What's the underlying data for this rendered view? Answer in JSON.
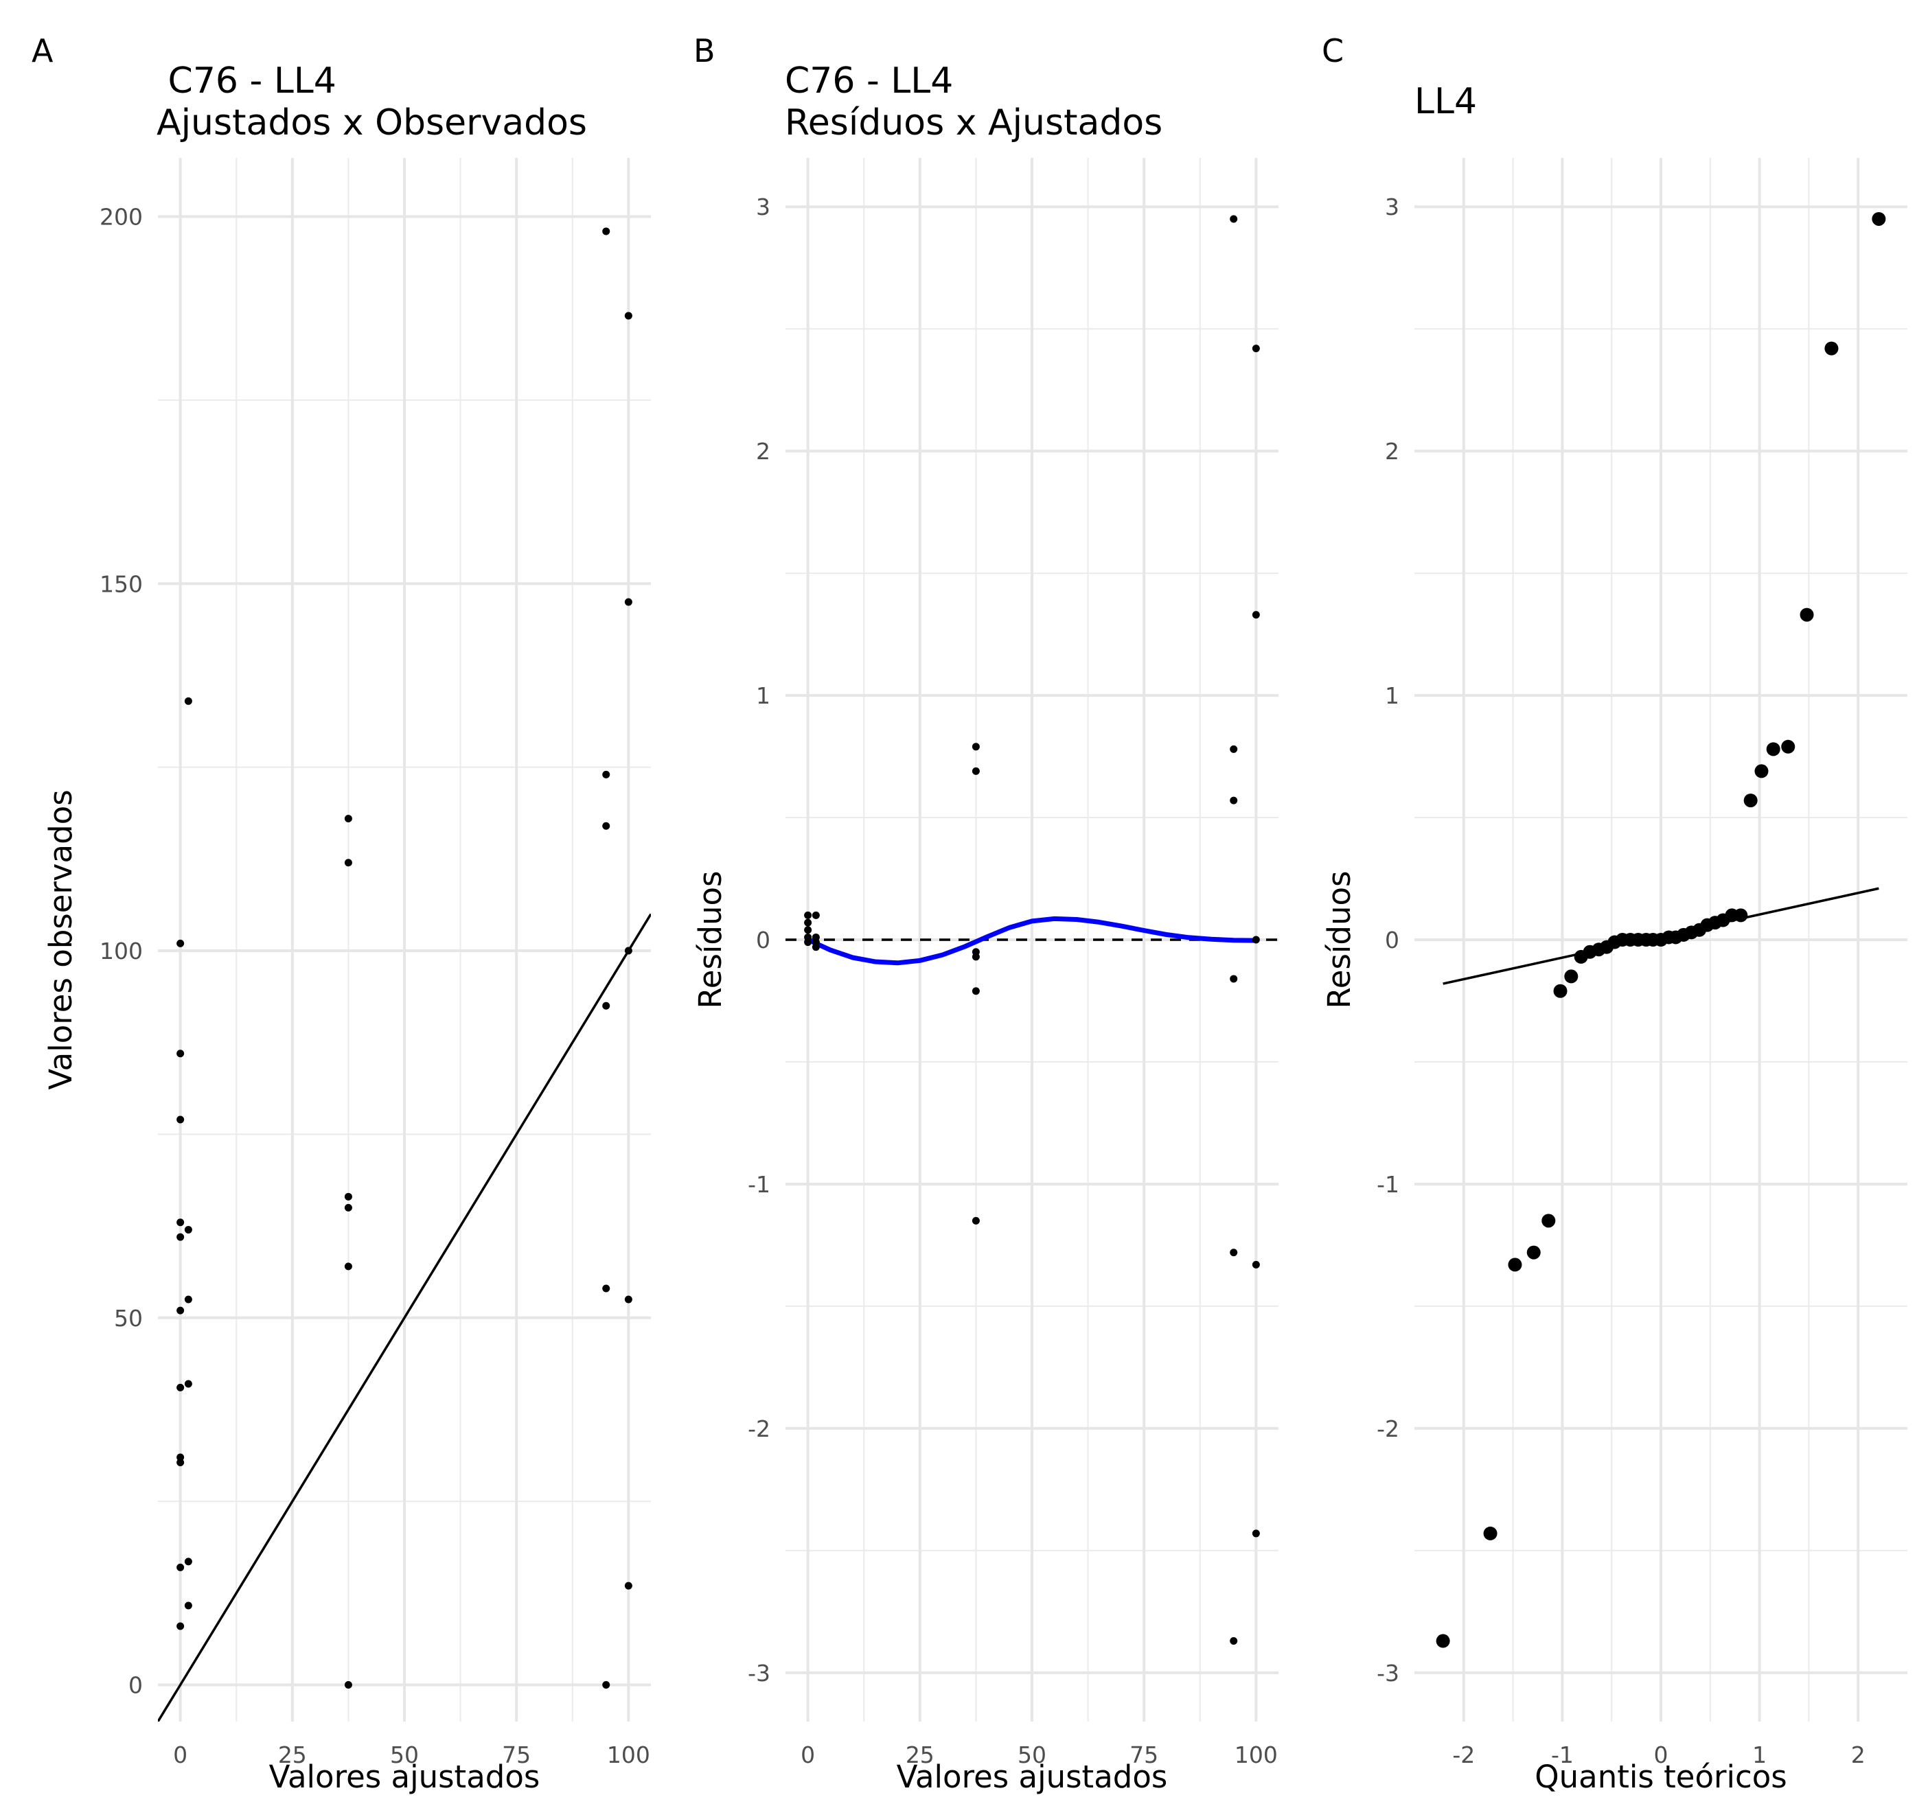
{
  "chart_data": [
    {
      "panel_tag": "A",
      "type": "scatter",
      "title_lines": [
        " C76 - LL4",
        "Ajustados x Observados"
      ],
      "xlabel": "Valores ajustados",
      "ylabel": "Valores observados",
      "xlim": [
        -5,
        105
      ],
      "ylim": [
        -5,
        208
      ],
      "xticks": [
        0,
        25,
        50,
        75,
        100
      ],
      "xtick_labels": [
        "0",
        "25",
        "50",
        "75",
        "100"
      ],
      "yticks": [
        0,
        50,
        100,
        150,
        200
      ],
      "ytick_labels": [
        "0",
        "50",
        "100",
        "150",
        "200"
      ],
      "grid": true,
      "reference_line": {
        "kind": "identity",
        "intercept": 0,
        "slope": 1
      },
      "points": [
        {
          "x": 0,
          "y": 101
        },
        {
          "x": 0,
          "y": 86
        },
        {
          "x": 0,
          "y": 77
        },
        {
          "x": 0,
          "y": 63
        },
        {
          "x": 0,
          "y": 61
        },
        {
          "x": 0,
          "y": 51
        },
        {
          "x": 0,
          "y": 40.5
        },
        {
          "x": 0,
          "y": 31
        },
        {
          "x": 0,
          "y": 30.3
        },
        {
          "x": 0,
          "y": 16
        },
        {
          "x": 0,
          "y": 8
        },
        {
          "x": 1.8,
          "y": 134
        },
        {
          "x": 1.8,
          "y": 62
        },
        {
          "x": 1.8,
          "y": 52.5
        },
        {
          "x": 1.8,
          "y": 41
        },
        {
          "x": 1.8,
          "y": 16.8
        },
        {
          "x": 1.8,
          "y": 10.8
        },
        {
          "x": 37.5,
          "y": 118
        },
        {
          "x": 37.5,
          "y": 112
        },
        {
          "x": 37.5,
          "y": 66.5
        },
        {
          "x": 37.5,
          "y": 65
        },
        {
          "x": 37.5,
          "y": 57
        },
        {
          "x": 37.5,
          "y": 0
        },
        {
          "x": 95,
          "y": 198
        },
        {
          "x": 95,
          "y": 124
        },
        {
          "x": 95,
          "y": 117
        },
        {
          "x": 95,
          "y": 92.5
        },
        {
          "x": 95,
          "y": 54
        },
        {
          "x": 95,
          "y": 0
        },
        {
          "x": 100,
          "y": 186.5
        },
        {
          "x": 100,
          "y": 147.5
        },
        {
          "x": 100,
          "y": 100
        },
        {
          "x": 100,
          "y": 52.5
        },
        {
          "x": 100,
          "y": 13.5
        }
      ]
    },
    {
      "panel_tag": "B",
      "type": "scatter",
      "title_lines": [
        "C76 - LL4",
        "Resíduos x Ajustados"
      ],
      "xlabel": "Valores ajustados",
      "ylabel": "Resíduos",
      "xlim": [
        -5,
        105
      ],
      "ylim": [
        -3.2,
        3.2
      ],
      "xticks": [
        0,
        25,
        50,
        75,
        100
      ],
      "xtick_labels": [
        "0",
        "25",
        "50",
        "75",
        "100"
      ],
      "yticks": [
        -3,
        -2,
        -1,
        0,
        1,
        2,
        3
      ],
      "ytick_labels": [
        "-3",
        "-2",
        "-1",
        "0",
        "1",
        "2",
        "3"
      ],
      "grid": true,
      "reference_line": {
        "kind": "horizontal-dashed",
        "y": 0
      },
      "smooth_line": {
        "color": "#0000ff",
        "x": [
          0,
          5,
          10,
          15,
          20,
          25,
          30,
          35,
          40,
          45,
          50,
          55,
          60,
          65,
          70,
          75,
          80,
          85,
          90,
          95,
          100
        ],
        "y": [
          0.0,
          -0.042,
          -0.073,
          -0.09,
          -0.095,
          -0.085,
          -0.062,
          -0.028,
          0.012,
          0.05,
          0.076,
          0.086,
          0.083,
          0.072,
          0.056,
          0.038,
          0.021,
          0.009,
          0.002,
          -0.002,
          -0.003
        ]
      },
      "points": [
        {
          "x": 0,
          "y": 0.1
        },
        {
          "x": 0,
          "y": 0.07
        },
        {
          "x": 0,
          "y": 0.04
        },
        {
          "x": 0,
          "y": 0.01
        },
        {
          "x": 0,
          "y": -0.01
        },
        {
          "x": 1.8,
          "y": 0.1
        },
        {
          "x": 1.8,
          "y": 0.01
        },
        {
          "x": 1.8,
          "y": -0.01
        },
        {
          "x": 1.8,
          "y": -0.03
        },
        {
          "x": 37.5,
          "y": 0.79
        },
        {
          "x": 37.5,
          "y": 0.69
        },
        {
          "x": 37.5,
          "y": -0.05
        },
        {
          "x": 37.5,
          "y": -0.07
        },
        {
          "x": 37.5,
          "y": -0.21
        },
        {
          "x": 37.5,
          "y": -1.15
        },
        {
          "x": 95,
          "y": 2.95
        },
        {
          "x": 95,
          "y": 0.78
        },
        {
          "x": 95,
          "y": 0.57
        },
        {
          "x": 95,
          "y": -0.16
        },
        {
          "x": 95,
          "y": -1.28
        },
        {
          "x": 95,
          "y": -2.87
        },
        {
          "x": 100,
          "y": 2.42
        },
        {
          "x": 100,
          "y": 1.33
        },
        {
          "x": 100,
          "y": 0.0
        },
        {
          "x": 100,
          "y": -1.33
        },
        {
          "x": 100,
          "y": -2.43
        }
      ]
    },
    {
      "panel_tag": "C",
      "type": "scatter",
      "title_lines": [
        "LL4"
      ],
      "xlabel": "Quantis teóricos",
      "ylabel": "Resíduos",
      "xlim": [
        -2.5,
        2.5
      ],
      "ylim": [
        -3.2,
        3.2
      ],
      "xticks": [
        -2,
        -1,
        0,
        1,
        2
      ],
      "xtick_labels": [
        "-2",
        "-1",
        "0",
        "1",
        "2"
      ],
      "yticks": [
        -3,
        -2,
        -1,
        0,
        1,
        2,
        3
      ],
      "ytick_labels": [
        "-3",
        "-2",
        "-1",
        "0",
        "1",
        "2",
        "3"
      ],
      "grid": true,
      "reference_line": {
        "kind": "qq-line",
        "x": [
          -2.21,
          2.21
        ],
        "y": [
          -0.18,
          0.21
        ]
      },
      "points": [
        {
          "x": -2.21,
          "y": -2.87
        },
        {
          "x": -1.73,
          "y": -2.43
        },
        {
          "x": -1.48,
          "y": -1.33
        },
        {
          "x": -1.29,
          "y": -1.28
        },
        {
          "x": -1.14,
          "y": -1.15
        },
        {
          "x": -1.02,
          "y": -0.21
        },
        {
          "x": -0.91,
          "y": -0.15
        },
        {
          "x": -0.81,
          "y": -0.07
        },
        {
          "x": -0.72,
          "y": -0.05
        },
        {
          "x": -0.63,
          "y": -0.04
        },
        {
          "x": -0.55,
          "y": -0.03
        },
        {
          "x": -0.47,
          "y": -0.01
        },
        {
          "x": -0.39,
          "y": 0.0
        },
        {
          "x": -0.31,
          "y": 0.0
        },
        {
          "x": -0.23,
          "y": 0.0
        },
        {
          "x": -0.15,
          "y": 0.0
        },
        {
          "x": -0.08,
          "y": 0.0
        },
        {
          "x": 0.0,
          "y": 0.0
        },
        {
          "x": 0.08,
          "y": 0.01
        },
        {
          "x": 0.15,
          "y": 0.01
        },
        {
          "x": 0.23,
          "y": 0.02
        },
        {
          "x": 0.31,
          "y": 0.03
        },
        {
          "x": 0.39,
          "y": 0.04
        },
        {
          "x": 0.47,
          "y": 0.06
        },
        {
          "x": 0.55,
          "y": 0.07
        },
        {
          "x": 0.63,
          "y": 0.08
        },
        {
          "x": 0.72,
          "y": 0.1
        },
        {
          "x": 0.81,
          "y": 0.1
        },
        {
          "x": 0.91,
          "y": 0.57
        },
        {
          "x": 1.02,
          "y": 0.69
        },
        {
          "x": 1.14,
          "y": 0.78
        },
        {
          "x": 1.29,
          "y": 0.79
        },
        {
          "x": 1.48,
          "y": 1.33
        },
        {
          "x": 1.73,
          "y": 2.42
        },
        {
          "x": 2.21,
          "y": 2.95
        }
      ]
    }
  ]
}
